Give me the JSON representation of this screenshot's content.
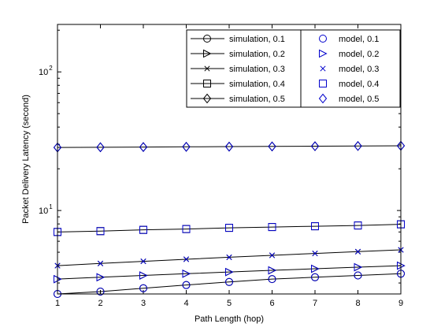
{
  "chart_data": {
    "type": "line",
    "title": "",
    "xlabel": "Path Length (hop)",
    "ylabel": "Packet Delivery Latency (second)",
    "xlim": [
      1,
      9
    ],
    "ylim": [
      2.5,
      220
    ],
    "yscale": "log",
    "xticks": [
      1,
      2,
      3,
      4,
      5,
      6,
      7,
      8,
      9
    ],
    "yticks": [
      {
        "value": 10,
        "base": "10",
        "exp": "1"
      },
      {
        "value": 100,
        "base": "10",
        "exp": "2"
      }
    ],
    "grid": false,
    "legend_position": "top-right",
    "x": [
      1,
      2,
      3,
      4,
      5,
      6,
      7,
      8,
      9
    ],
    "series": [
      {
        "name": "simulation, 0.1",
        "kind": "line",
        "marker": "circle",
        "color": "#000000",
        "values": [
          2.5,
          2.6,
          2.75,
          2.9,
          3.05,
          3.2,
          3.3,
          3.4,
          3.5
        ]
      },
      {
        "name": "simulation, 0.2",
        "kind": "line",
        "marker": "triangle-right",
        "color": "#000000",
        "values": [
          3.2,
          3.3,
          3.4,
          3.5,
          3.6,
          3.7,
          3.8,
          3.9,
          4.0
        ]
      },
      {
        "name": "simulation, 0.3",
        "kind": "line",
        "marker": "x",
        "color": "#000000",
        "values": [
          4.0,
          4.15,
          4.3,
          4.45,
          4.6,
          4.75,
          4.9,
          5.05,
          5.2
        ]
      },
      {
        "name": "simulation, 0.4",
        "kind": "line",
        "marker": "square",
        "color": "#000000",
        "values": [
          7.0,
          7.1,
          7.25,
          7.35,
          7.5,
          7.6,
          7.7,
          7.8,
          7.95
        ]
      },
      {
        "name": "simulation, 0.5",
        "kind": "line",
        "marker": "diamond",
        "color": "#000000",
        "values": [
          28.5,
          28.6,
          28.7,
          28.8,
          28.9,
          29.0,
          29.1,
          29.2,
          29.3
        ]
      },
      {
        "name": "model, 0.1",
        "kind": "marker",
        "marker": "circle",
        "color": "#0000cc",
        "values": [
          2.5,
          2.6,
          2.75,
          2.9,
          3.05,
          3.2,
          3.3,
          3.4,
          3.5
        ]
      },
      {
        "name": "model, 0.2",
        "kind": "marker",
        "marker": "triangle-right",
        "color": "#0000cc",
        "values": [
          3.2,
          3.3,
          3.4,
          3.5,
          3.6,
          3.7,
          3.8,
          3.9,
          4.0
        ]
      },
      {
        "name": "model, 0.3",
        "kind": "marker",
        "marker": "x",
        "color": "#0000cc",
        "values": [
          4.0,
          4.15,
          4.3,
          4.45,
          4.6,
          4.75,
          4.9,
          5.05,
          5.2
        ]
      },
      {
        "name": "model, 0.4",
        "kind": "marker",
        "marker": "square",
        "color": "#0000cc",
        "values": [
          7.0,
          7.1,
          7.25,
          7.35,
          7.5,
          7.6,
          7.7,
          7.8,
          7.95
        ]
      },
      {
        "name": "model, 0.5",
        "kind": "marker",
        "marker": "diamond",
        "color": "#0000cc",
        "values": [
          28.5,
          28.6,
          28.7,
          28.8,
          28.9,
          29.0,
          29.1,
          29.2,
          29.3
        ]
      }
    ]
  }
}
